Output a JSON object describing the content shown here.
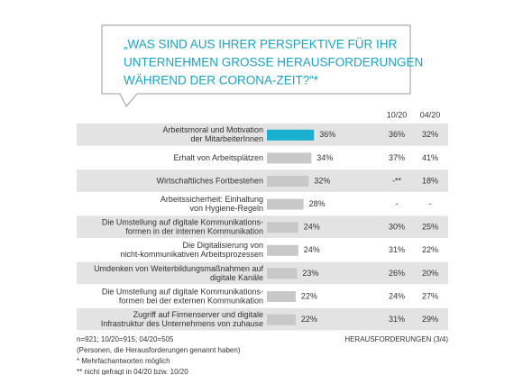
{
  "chart_data": {
    "type": "bar",
    "orientation": "horizontal",
    "title": [
      "„WAS SIND AUS IHRER PERSPEKTIVE FÜR IHR",
      "UNTERNEHMEN GROSSE HERAUSFORDERUNGEN",
      "WÄHREND DER CORONA-ZEIT?“*"
    ],
    "categories": [
      [
        "Arbeitsmoral und Motivation",
        "der MitarbeiterInnen"
      ],
      [
        "Erhalt von Arbeitsplätzen"
      ],
      [
        "Wirtschaftliches Fortbestehen"
      ],
      [
        "Arbeitssicherheit: Einhaltung",
        "von Hygiene-Regeln"
      ],
      [
        "Die Umstellung auf digitale Kommunikations-",
        "formen in der internen Kommunikation"
      ],
      [
        "Die Digitalisierung von",
        "nicht-kommunikativen Arbeitsprozessen"
      ],
      [
        "Umdenken von Weiterbildungsmaßnahmen auf",
        "digitale Kanäle"
      ],
      [
        "Die Umstellung auf digitale Kommunikations-",
        "formen bei der externen Kommunikation"
      ],
      [
        "Zugriff auf Firmenserver und digitale",
        "Infrastruktur des Unternehmens von zuhause"
      ]
    ],
    "values": [
      36,
      34,
      32,
      28,
      24,
      24,
      23,
      22,
      22
    ],
    "value_labels": [
      "36%",
      "34%",
      "32%",
      "28%",
      "24%",
      "24%",
      "23%",
      "22%",
      "22%"
    ],
    "colors": [
      "#1aaecf",
      "#c8c8c8",
      "#c8c8c8",
      "#c8c8c8",
      "#c8c8c8",
      "#c8c8c8",
      "#c8c8c8",
      "#c8c8c8",
      "#c8c8c8"
    ],
    "comparison": [
      {
        "name": "10/20",
        "values": [
          36,
          37,
          null,
          null,
          30,
          31,
          26,
          24,
          31
        ],
        "value_labels": [
          "36%",
          "37%",
          "-**",
          "-",
          "30%",
          "31%",
          "26%",
          "24%",
          "31%"
        ]
      },
      {
        "name": "04/20",
        "values": [
          32,
          41,
          18,
          null,
          25,
          22,
          20,
          27,
          29
        ],
        "value_labels": [
          "32%",
          "41%",
          "18%",
          "-",
          "25%",
          "22%",
          "20%",
          "27%",
          "29%"
        ]
      }
    ],
    "notes": [
      "n=921;  10/20=915;  04/20=505",
      "(Personen, die Herausforderungen genannt haben)",
      "* Mehrfachantworten  möglich",
      "** nicht gefragt in 04/20  bzw. 10/20"
    ],
    "page_label": "HERAUSFORDERUNGEN  (3/4)"
  }
}
